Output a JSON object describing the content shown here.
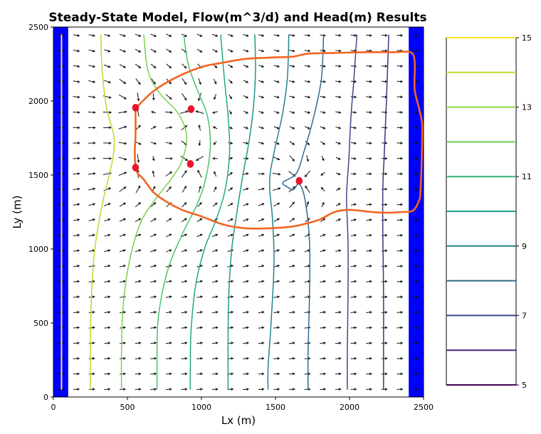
{
  "chart_data": {
    "type": "contour",
    "title": "Steady-State Model, Flow(m^3/d) and Head(m) Results",
    "xlabel": "Lx (m)",
    "ylabel": "Ly (m)",
    "xlim": [
      0,
      2500
    ],
    "ylim": [
      0,
      2500
    ],
    "xticks": [
      "0",
      "500",
      "1000",
      "1500",
      "2000",
      "2500"
    ],
    "yticks": [
      "0",
      "500",
      "1000",
      "1500",
      "2000",
      "2500"
    ],
    "colorbar": {
      "ticks": [
        "5",
        "7",
        "9",
        "11",
        "13",
        "15"
      ],
      "range": [
        5,
        15
      ],
      "levels": [
        {
          "value": 5,
          "color": "#440154"
        },
        {
          "value": 6,
          "color": "#482878"
        },
        {
          "value": 7,
          "color": "#3e4989"
        },
        {
          "value": 8,
          "color": "#31688e"
        },
        {
          "value": 9,
          "color": "#26828e"
        },
        {
          "value": 10,
          "color": "#1f9e89"
        },
        {
          "value": 11,
          "color": "#35b779"
        },
        {
          "value": 12,
          "color": "#6ece58"
        },
        {
          "value": 13,
          "color": "#8fd744"
        },
        {
          "value": 14,
          "color": "#b5de2b"
        },
        {
          "value": 15,
          "color": "#fde725"
        }
      ]
    },
    "boundaries": {
      "left_fixed_head": {
        "x": [
          0,
          100
        ],
        "color": "#0000ff"
      },
      "right_fixed_head": {
        "x": [
          2400,
          2500
        ],
        "color": "#0000ff"
      }
    },
    "contours": [
      {
        "level": 14,
        "color": "#b5de2b",
        "points": [
          [
            320,
            2450
          ],
          [
            330,
            2200
          ],
          [
            360,
            1950
          ],
          [
            410,
            1750
          ],
          [
            395,
            1580
          ],
          [
            330,
            1300
          ],
          [
            280,
            1000
          ],
          [
            258,
            700
          ],
          [
            250,
            400
          ],
          [
            250,
            50
          ]
        ]
      },
      {
        "level": 13,
        "color": "#7ad151",
        "points": [
          [
            610,
            2450
          ],
          [
            640,
            2200
          ],
          [
            720,
            2050
          ],
          [
            840,
            1920
          ],
          [
            900,
            1770
          ],
          [
            870,
            1600
          ],
          [
            800,
            1480
          ],
          [
            700,
            1350
          ],
          [
            590,
            1180
          ],
          [
            510,
            900
          ],
          [
            470,
            600
          ],
          [
            460,
            300
          ],
          [
            460,
            50
          ]
        ]
      },
      {
        "level": 12,
        "color": "#4ac16d",
        "points": [
          [
            880,
            2450
          ],
          [
            910,
            2250
          ],
          [
            970,
            2080
          ],
          [
            1040,
            1900
          ],
          [
            1060,
            1700
          ],
          [
            1030,
            1480
          ],
          [
            970,
            1300
          ],
          [
            870,
            1100
          ],
          [
            770,
            850
          ],
          [
            710,
            550
          ],
          [
            700,
            300
          ],
          [
            700,
            50
          ]
        ]
      },
      {
        "level": 11,
        "color": "#22a884",
        "points": [
          [
            1130,
            2450
          ],
          [
            1155,
            2150
          ],
          [
            1180,
            1900
          ],
          [
            1190,
            1650
          ],
          [
            1160,
            1400
          ],
          [
            1100,
            1200
          ],
          [
            1020,
            1000
          ],
          [
            960,
            750
          ],
          [
            930,
            450
          ],
          [
            925,
            200
          ],
          [
            925,
            50
          ]
        ]
      },
      {
        "level": 10,
        "color": "#1f988b",
        "points": [
          [
            1360,
            2450
          ],
          [
            1365,
            2200
          ],
          [
            1350,
            1950
          ],
          [
            1320,
            1720
          ],
          [
            1280,
            1500
          ],
          [
            1240,
            1250
          ],
          [
            1205,
            1000
          ],
          [
            1185,
            700
          ],
          [
            1180,
            400
          ],
          [
            1180,
            50
          ]
        ]
      },
      {
        "level": 9,
        "color": "#26828e",
        "points": [
          [
            1590,
            2450
          ],
          [
            1580,
            2150
          ],
          [
            1545,
            1900
          ],
          [
            1490,
            1650
          ],
          [
            1460,
            1450
          ],
          [
            1480,
            1200
          ],
          [
            1490,
            900
          ],
          [
            1470,
            500
          ],
          [
            1450,
            200
          ],
          [
            1450,
            50
          ]
        ]
      },
      {
        "level": 8,
        "color": "#2f6b8e",
        "points": [
          [
            1825,
            2450
          ],
          [
            1810,
            2150
          ],
          [
            1760,
            1900
          ],
          [
            1690,
            1650
          ],
          [
            1640,
            1510
          ],
          [
            1550,
            1450
          ],
          [
            1580,
            1420
          ],
          [
            1620,
            1400
          ],
          [
            1660,
            1440
          ],
          [
            1700,
            1330
          ],
          [
            1730,
            1050
          ],
          [
            1730,
            700
          ],
          [
            1720,
            300
          ],
          [
            1720,
            50
          ]
        ]
      },
      {
        "level": 7,
        "color": "#3e4989",
        "points": [
          [
            2050,
            2450
          ],
          [
            2030,
            2150
          ],
          [
            2010,
            1900
          ],
          [
            1995,
            1600
          ],
          [
            1980,
            1350
          ],
          [
            1990,
            1050
          ],
          [
            1990,
            700
          ],
          [
            1985,
            300
          ],
          [
            1985,
            50
          ]
        ]
      },
      {
        "level": 6,
        "color": "#472f7d",
        "points": [
          [
            2265,
            2450
          ],
          [
            2255,
            2150
          ],
          [
            2245,
            1900
          ],
          [
            2235,
            1650
          ],
          [
            2225,
            1400
          ],
          [
            2225,
            1100
          ],
          [
            2230,
            700
          ],
          [
            2230,
            300
          ],
          [
            2230,
            50
          ]
        ]
      }
    ],
    "capture_zone": {
      "color": "#f26522",
      "points": [
        [
          555,
          1950
        ],
        [
          680,
          2070
        ],
        [
          830,
          2160
        ],
        [
          1000,
          2230
        ],
        [
          1150,
          2260
        ],
        [
          1300,
          2285
        ],
        [
          1500,
          2295
        ],
        [
          1620,
          2300
        ],
        [
          1720,
          2320
        ],
        [
          1900,
          2325
        ],
        [
          2100,
          2330
        ],
        [
          2300,
          2330
        ],
        [
          2410,
          2330
        ],
        [
          2440,
          2270
        ],
        [
          2440,
          2080
        ],
        [
          2470,
          1950
        ],
        [
          2490,
          1850
        ],
        [
          2490,
          1700
        ],
        [
          2480,
          1400
        ],
        [
          2470,
          1330
        ],
        [
          2430,
          1260
        ],
        [
          2350,
          1250
        ],
        [
          2250,
          1245
        ],
        [
          2150,
          1250
        ],
        [
          2000,
          1265
        ],
        [
          1900,
          1250
        ],
        [
          1800,
          1200
        ],
        [
          1700,
          1170
        ],
        [
          1600,
          1150
        ],
        [
          1450,
          1140
        ],
        [
          1300,
          1140
        ],
        [
          1150,
          1165
        ],
        [
          1000,
          1220
        ],
        [
          880,
          1260
        ],
        [
          780,
          1310
        ],
        [
          680,
          1380
        ],
        [
          610,
          1470
        ],
        [
          560,
          1530
        ],
        [
          550,
          1650
        ],
        [
          555,
          1780
        ],
        [
          555,
          1950
        ]
      ]
    },
    "wells": [
      {
        "x": 555,
        "y": 1955,
        "color": "#e8152b"
      },
      {
        "x": 555,
        "y": 1550,
        "color": "#e8152b"
      },
      {
        "x": 930,
        "y": 1945,
        "color": "#e8152b"
      },
      {
        "x": 925,
        "y": 1575,
        "color": "#e8152b"
      },
      {
        "x": 1660,
        "y": 1460,
        "color": "#e8152b"
      }
    ],
    "sources": [
      {
        "x": 55,
        "y1": 50,
        "y2": 2450,
        "color": "#f2d7a0"
      }
    ],
    "flow_field": {
      "nx": 24,
      "ny": 24,
      "x0": 52,
      "y0": 52,
      "spacing": 104,
      "arrow_color": "#111111"
    }
  }
}
